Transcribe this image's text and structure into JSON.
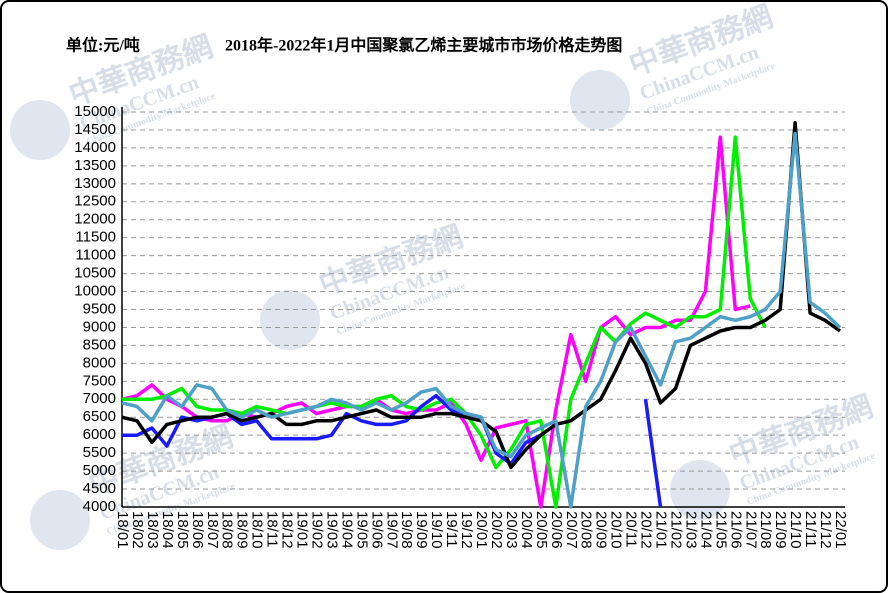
{
  "chart_data": {
    "type": "line",
    "unit_label": "单位:元/吨",
    "title": "2018年-2022年1月中国聚氯乙烯主要城市市场价格走势图",
    "watermark": {
      "cn": "中華商務網",
      "en": "ChinaCCM.cn",
      "sub": "China Commodity Marketplace"
    },
    "categories": [
      "18/01",
      "18/02",
      "18/03",
      "18/04",
      "18/05",
      "18/06",
      "18/07",
      "18/08",
      "18/09",
      "18/10",
      "18/11",
      "18/12",
      "19/01",
      "19/02",
      "19/03",
      "19/04",
      "19/05",
      "19/06",
      "19/07",
      "19/08",
      "19/09",
      "19/10",
      "19/11",
      "19/12",
      "20/01",
      "20/02",
      "20/03",
      "20/04",
      "20/05",
      "20/06",
      "20/07",
      "20/08",
      "20/09",
      "20/10",
      "20/11",
      "20/12",
      "21/01",
      "21/02",
      "21/03",
      "21/04",
      "21/05",
      "21/06",
      "21/07",
      "21/08",
      "21/09",
      "21/10",
      "21/11",
      "21/12",
      "22/01"
    ],
    "ylim": [
      4000,
      15000
    ],
    "yticks": [
      4000,
      4500,
      5000,
      5500,
      6000,
      6500,
      7000,
      7500,
      8000,
      8500,
      9000,
      9500,
      10000,
      10500,
      11000,
      11500,
      12000,
      12500,
      13000,
      13500,
      14000,
      14500,
      15000
    ],
    "grid": true,
    "series": [
      {
        "color": "#ff00ff",
        "values": [
          7000,
          7100,
          7400,
          7000,
          6800,
          6500,
          6400,
          6400,
          6600,
          6500,
          6600,
          6800,
          6900,
          6600,
          6700,
          6800,
          6800,
          7000,
          6700,
          6600,
          6700,
          6700,
          6900,
          6300,
          5300,
          6200,
          6300,
          6400,
          4000,
          6700,
          8800,
          7500,
          9000,
          9300,
          8800,
          9000,
          9000,
          9200,
          9200,
          10000,
          14300,
          9500,
          9600,
          null,
          null,
          null,
          null,
          null,
          null
        ]
      },
      {
        "color": "#00ee00",
        "values": [
          7000,
          7000,
          7000,
          7100,
          7300,
          6800,
          6700,
          6700,
          6600,
          6800,
          6700,
          6600,
          6700,
          6800,
          6900,
          6800,
          6800,
          7000,
          7100,
          6800,
          6700,
          6900,
          7000,
          6600,
          6000,
          5100,
          5600,
          6300,
          6400,
          4000,
          7000,
          8000,
          9000,
          8600,
          9100,
          9400,
          9200,
          9000,
          9300,
          9300,
          9500,
          14300,
          9800,
          9000,
          null,
          null,
          null,
          null,
          null
        ]
      },
      {
        "color": "#1a1aff",
        "values": [
          6000,
          6000,
          6200,
          5700,
          6500,
          6400,
          6500,
          6600,
          6300,
          6400,
          5900,
          5900,
          5900,
          5900,
          6000,
          6600,
          6400,
          6300,
          6300,
          6400,
          6800,
          7100,
          6700,
          6600,
          6500,
          5500,
          5200,
          5800,
          6000,
          null,
          null,
          null,
          null,
          null,
          null,
          7000,
          4000,
          null,
          null,
          null,
          null,
          null,
          null,
          null,
          null,
          null,
          null,
          null,
          null
        ]
      },
      {
        "color": "#000000",
        "values": [
          6500,
          6400,
          5800,
          6300,
          6400,
          6500,
          6500,
          6600,
          6400,
          6500,
          6600,
          6300,
          6300,
          6400,
          6400,
          6500,
          6600,
          6700,
          6500,
          6500,
          6500,
          6600,
          6600,
          6500,
          6400,
          6100,
          5100,
          5600,
          6000,
          6300,
          6400,
          6700,
          7000,
          7800,
          8700,
          8000,
          6900,
          7300,
          8500,
          8700,
          8900,
          9000,
          9000,
          9200,
          9500,
          14700,
          9400,
          9200,
          8900
        ]
      },
      {
        "color": "#4fa0c8",
        "values": [
          6900,
          6800,
          6400,
          7100,
          6800,
          7400,
          7300,
          6700,
          6500,
          6700,
          6500,
          6600,
          6700,
          6800,
          7000,
          6900,
          6700,
          6900,
          6700,
          6900,
          7200,
          7300,
          6800,
          6600,
          6500,
          5600,
          5400,
          6000,
          6200,
          6400,
          4000,
          6800,
          7500,
          8600,
          9000,
          8200,
          7400,
          8600,
          8700,
          9000,
          9300,
          9200,
          9300,
          9500,
          10000,
          14400,
          9700,
          9400,
          9000
        ]
      }
    ]
  }
}
